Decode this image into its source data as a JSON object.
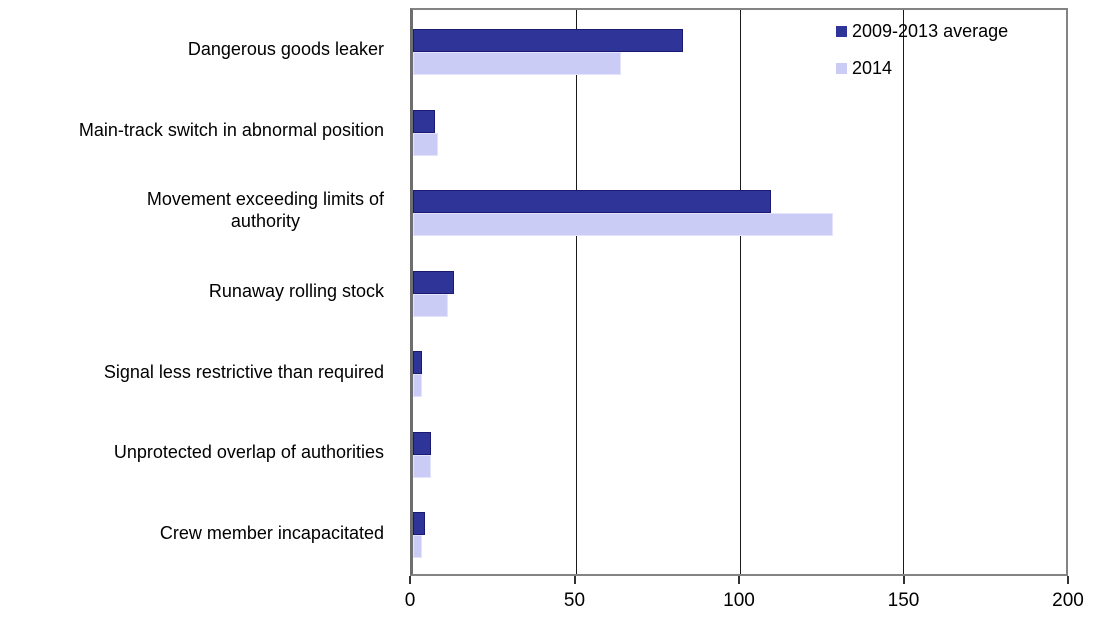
{
  "chart_data": {
    "type": "bar",
    "orientation": "horizontal",
    "title": "",
    "categories": [
      "Dangerous goods leaker",
      "Main-track switch in abnormal position",
      "Movement exceeding limits of\nauthority",
      "Runaway rolling stock",
      "Signal less restrictive than required",
      "Unprotected overlap of authorities",
      "Crew member incapacitated"
    ],
    "series": [
      {
        "name": "2009-2013 average",
        "values": [
          82,
          6,
          109,
          12,
          2,
          5,
          3
        ],
        "fill": "#2f3499",
        "border": "#1a1a70"
      },
      {
        "name": "2014",
        "values": [
          63,
          7,
          128,
          10,
          2,
          5,
          2
        ],
        "fill": "#cbccf6",
        "border": "#e3e4fb"
      }
    ],
    "xlim": [
      0,
      200
    ],
    "x_ticks": [
      0,
      50,
      100,
      150,
      200
    ],
    "grid": "vertical",
    "legend_position": "top-right-inside"
  },
  "colors": {
    "frame": "#838383",
    "gridline": "#1a1a1a",
    "text": "#000000",
    "background": "#ffffff"
  }
}
